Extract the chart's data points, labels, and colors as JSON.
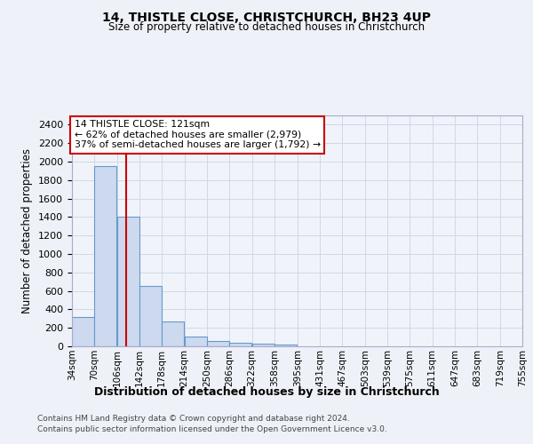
{
  "title1": "14, THISTLE CLOSE, CHRISTCHURCH, BH23 4UP",
  "title2": "Size of property relative to detached houses in Christchurch",
  "xlabel": "Distribution of detached houses by size in Christchurch",
  "ylabel": "Number of detached properties",
  "bar_values": [
    320,
    1950,
    1400,
    650,
    270,
    110,
    55,
    40,
    25,
    20,
    0,
    0,
    0,
    0,
    0,
    0,
    0,
    0,
    0,
    0
  ],
  "bin_edges": [
    34,
    70,
    106,
    142,
    178,
    214,
    250,
    286,
    322,
    358,
    395,
    431,
    467,
    503,
    539,
    575,
    611,
    647,
    683,
    719,
    755
  ],
  "x_labels": [
    "34sqm",
    "70sqm",
    "106sqm",
    "142sqm",
    "178sqm",
    "214sqm",
    "250sqm",
    "286sqm",
    "322sqm",
    "358sqm",
    "395sqm",
    "431sqm",
    "467sqm",
    "503sqm",
    "539sqm",
    "575sqm",
    "611sqm",
    "647sqm",
    "683sqm",
    "719sqm",
    "755sqm"
  ],
  "bar_color": "#ccd9ee",
  "bar_edge_color": "#6699cc",
  "vline_x": 121,
  "vline_color": "#cc0000",
  "annotation_text": "14 THISTLE CLOSE: 121sqm\n← 62% of detached houses are smaller (2,979)\n37% of semi-detached houses are larger (1,792) →",
  "annotation_box_color": "#cc0000",
  "annotation_bg": "#ffffff",
  "ylim": [
    0,
    2500
  ],
  "yticks": [
    0,
    200,
    400,
    600,
    800,
    1000,
    1200,
    1400,
    1600,
    1800,
    2000,
    2200,
    2400
  ],
  "grid_color": "#d0d8e8",
  "footer1": "Contains HM Land Registry data © Crown copyright and database right 2024.",
  "footer2": "Contains public sector information licensed under the Open Government Licence v3.0.",
  "bg_color": "#eef2f8",
  "plot_bg_color": "#f0f4fa"
}
